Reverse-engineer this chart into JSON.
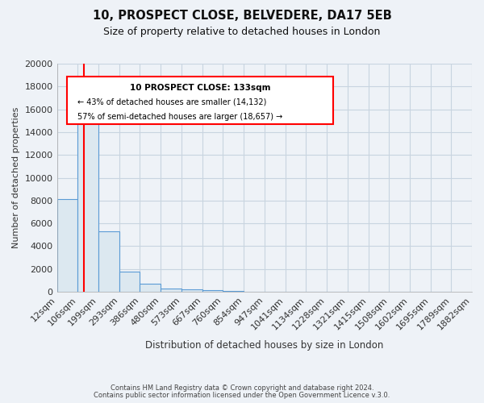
{
  "title": "10, PROSPECT CLOSE, BELVEDERE, DA17 5EB",
  "subtitle": "Size of property relative to detached houses in London",
  "xlabel": "Distribution of detached houses by size in London",
  "ylabel": "Number of detached properties",
  "bar_color": "#dce8f0",
  "bar_edge_color": "#5b9bd5",
  "bar_heights": [
    8100,
    16550,
    5300,
    1800,
    700,
    300,
    250,
    150,
    100,
    0,
    0,
    0,
    0,
    0,
    0,
    0,
    0,
    0,
    0
  ],
  "bin_labels": [
    "12sqm",
    "106sqm",
    "199sqm",
    "293sqm",
    "386sqm",
    "480sqm",
    "573sqm",
    "667sqm",
    "760sqm",
    "854sqm",
    "947sqm",
    "1041sqm",
    "1134sqm",
    "1228sqm",
    "1321sqm",
    "1415sqm",
    "1508sqm",
    "1602sqm",
    "1695sqm",
    "1789sqm",
    "1882sqm"
  ],
  "bin_edges": [
    12,
    106,
    199,
    293,
    386,
    480,
    573,
    667,
    760,
    854,
    947,
    1041,
    1134,
    1228,
    1321,
    1415,
    1508,
    1602,
    1695,
    1789,
    1882
  ],
  "ylim": [
    0,
    20000
  ],
  "yticks": [
    0,
    2000,
    4000,
    6000,
    8000,
    10000,
    12000,
    14000,
    16000,
    18000,
    20000
  ],
  "red_line_x": 133,
  "annotation_title": "10 PROSPECT CLOSE: 133sqm",
  "annotation_line1": "← 43% of detached houses are smaller (14,132)",
  "annotation_line2": "57% of semi-detached houses are larger (18,657) →",
  "bg_color": "#eef2f7",
  "plot_bg_color": "#eef2f7",
  "grid_color": "#c8d4e0",
  "footer1": "Contains HM Land Registry data © Crown copyright and database right 2024.",
  "footer2": "Contains public sector information licensed under the Open Government Licence v.3.0."
}
